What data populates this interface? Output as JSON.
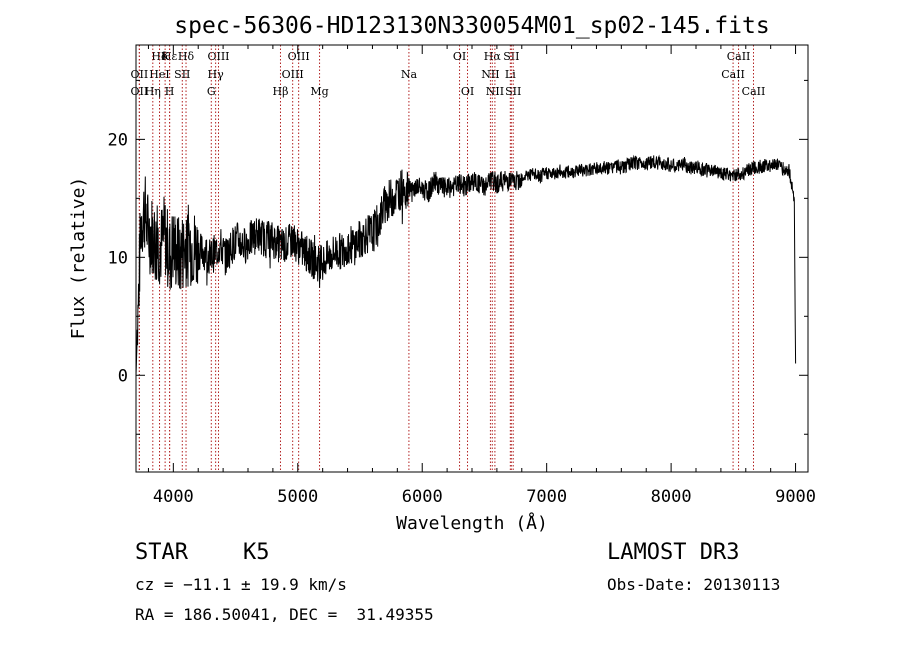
{
  "chart_data": {
    "type": "line",
    "title": "spec-56306-HD123130N330054M01_sp02-145.fits",
    "xlabel": "Wavelength (Å)",
    "ylabel": "Flux (relative)",
    "xlim": [
      3700,
      9100
    ],
    "ylim": [
      -8.2,
      28.0
    ],
    "xticks": [
      4000,
      5000,
      6000,
      7000,
      8000,
      9000
    ],
    "yticks": [
      0,
      10,
      20
    ],
    "series": [
      {
        "name": "flux",
        "x": [
          3700,
          3740,
          3770,
          3800,
          3830,
          3860,
          3900,
          3930,
          3970,
          4000,
          4050,
          4100,
          4150,
          4200,
          4250,
          4300,
          4340,
          4380,
          4420,
          4470,
          4520,
          4570,
          4620,
          4680,
          4740,
          4800,
          4860,
          4900,
          4960,
          5000,
          5050,
          5100,
          5150,
          5200,
          5250,
          5300,
          5350,
          5400,
          5450,
          5500,
          5550,
          5600,
          5650,
          5700,
          5750,
          5800,
          5850,
          5880,
          5900,
          5920,
          5950,
          6000,
          6050,
          6100,
          6150,
          6200,
          6250,
          6300,
          6350,
          6400,
          6450,
          6500,
          6550,
          6600,
          6650,
          6700,
          6750,
          6800,
          6850,
          6900,
          6950,
          7000,
          7050,
          7100,
          7150,
          7200,
          7250,
          7300,
          7350,
          7400,
          7450,
          7500,
          7550,
          7600,
          7650,
          7700,
          7750,
          7800,
          7850,
          7900,
          7950,
          8000,
          8050,
          8100,
          8150,
          8200,
          8250,
          8300,
          8350,
          8400,
          8450,
          8500,
          8550,
          8600,
          8650,
          8700,
          8750,
          8800,
          8850,
          8900,
          8950,
          8990,
          9000
        ],
        "y": [
          0,
          13,
          14,
          12,
          12,
          11,
          11,
          12,
          10,
          11,
          10,
          11,
          11,
          10.5,
          10.5,
          10,
          10.5,
          11,
          10,
          11,
          11.5,
          11,
          11.5,
          12,
          11.5,
          11.5,
          11,
          11,
          11.5,
          11,
          10.5,
          10,
          9.5,
          9.5,
          10,
          10.5,
          10.5,
          11,
          11,
          11.5,
          12,
          12,
          13,
          14.5,
          15,
          15.5,
          16,
          15.5,
          16,
          15.5,
          16,
          15.8,
          15.5,
          16.5,
          16,
          15.8,
          16,
          16.2,
          16,
          16.5,
          16.2,
          16,
          16.5,
          16.3,
          16.5,
          16.5,
          16.3,
          16.8,
          17,
          17,
          16.8,
          17.2,
          17,
          17.3,
          17.2,
          17.2,
          17.5,
          17.3,
          17.5,
          17.5,
          17.6,
          17.5,
          17.8,
          17.6,
          17.8,
          18,
          18,
          18,
          18.1,
          18,
          18,
          17.8,
          17.6,
          18,
          17.5,
          17.7,
          17.5,
          17.3,
          17.3,
          17.2,
          17,
          17,
          17,
          17.3,
          17.5,
          17.6,
          17.8,
          17.8,
          18,
          17.5,
          17.3,
          15,
          1
        ]
      }
    ],
    "lines": [
      {
        "label": "Hε",
        "wl": 3970,
        "row": 0
      },
      {
        "label": "Hδ",
        "wl": 3889,
        "row": 0
      },
      {
        "label": "K",
        "wl": 3934,
        "row": 0
      },
      {
        "label": "Hδ",
        "wl": 4102,
        "row": 0
      },
      {
        "label": "OIII",
        "wl": 4363,
        "row": 0
      },
      {
        "label": "OIII",
        "wl": 5007,
        "row": 0
      },
      {
        "label": "OI",
        "wl": 6300,
        "row": 0
      },
      {
        "label": "Hα",
        "wl": 6563,
        "row": 0
      },
      {
        "label": "SII",
        "wl": 6716,
        "row": 0
      },
      {
        "label": "CaII",
        "wl": 8542,
        "row": 0
      },
      {
        "label": "OII",
        "wl": 3727,
        "row": 1
      },
      {
        "label": "HeI",
        "wl": 3889,
        "row": 1
      },
      {
        "label": "SII",
        "wl": 4072,
        "row": 1
      },
      {
        "label": "Hγ",
        "wl": 4340,
        "row": 1
      },
      {
        "label": "OIII",
        "wl": 4959,
        "row": 1
      },
      {
        "label": "Na",
        "wl": 5893,
        "row": 1
      },
      {
        "label": "NII",
        "wl": 6548,
        "row": 1
      },
      {
        "label": "Li",
        "wl": 6708,
        "row": 1
      },
      {
        "label": "CaII",
        "wl": 8498,
        "row": 1
      },
      {
        "label": "OII",
        "wl": 3727,
        "row": 2
      },
      {
        "label": "Hη",
        "wl": 3835,
        "row": 2
      },
      {
        "label": "H",
        "wl": 3970,
        "row": 2
      },
      {
        "label": "G",
        "wl": 4305,
        "row": 2
      },
      {
        "label": "Hβ",
        "wl": 4861,
        "row": 2
      },
      {
        "label": "Mg",
        "wl": 5175,
        "row": 2
      },
      {
        "label": "OI",
        "wl": 6364,
        "row": 2
      },
      {
        "label": "NII",
        "wl": 6584,
        "row": 2
      },
      {
        "label": "SII",
        "wl": 6731,
        "row": 2
      },
      {
        "label": "CaII",
        "wl": 8662,
        "row": 2
      }
    ]
  },
  "info": {
    "class": "STAR",
    "subclass": "K5",
    "survey": "LAMOST DR3",
    "cz": "cz = −11.1 ± 19.9 km/s",
    "obs_date": "Obs-Date: 20130113",
    "radec": "RA = 186.50041, DEC =  31.49355"
  }
}
